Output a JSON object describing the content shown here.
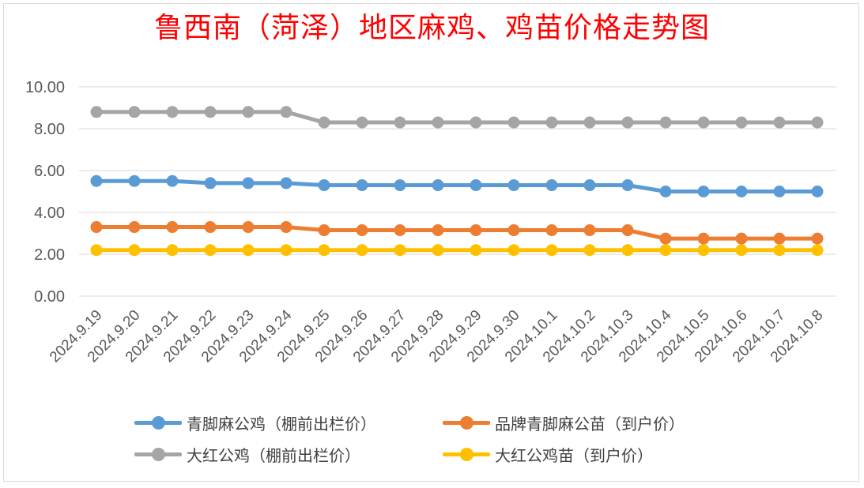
{
  "chart_data": {
    "type": "line",
    "title": "鲁西南（菏泽）地区麻鸡、鸡苗价格走势图",
    "xlabel": "",
    "ylabel": "",
    "ylim": [
      0,
      10
    ],
    "yticks": [
      "0.00",
      "2.00",
      "4.00",
      "6.00",
      "8.00",
      "10.00"
    ],
    "grid": true,
    "legend_position": "bottom",
    "categories": [
      "2024.9.19",
      "2024.9.20",
      "2024.9.21",
      "2024.9.22",
      "2024.9.23",
      "2024.9.24",
      "2024.9.25",
      "2024.9.26",
      "2024.9.27",
      "2024.9.28",
      "2024.9.29",
      "2024.9.30",
      "2024.10.1",
      "2024.10.2",
      "2024.10.3",
      "2024.10.4",
      "2024.10.5",
      "2024.10.6",
      "2024.10.7",
      "2024.10.8"
    ],
    "series": [
      {
        "name": "青脚麻公鸡（棚前出栏价）",
        "color": "#5b9bd5",
        "values": [
          5.5,
          5.5,
          5.5,
          5.4,
          5.4,
          5.4,
          5.3,
          5.3,
          5.3,
          5.3,
          5.3,
          5.3,
          5.3,
          5.3,
          5.3,
          5.0,
          5.0,
          5.0,
          5.0,
          5.0
        ]
      },
      {
        "name": "品牌青脚麻公苗（到户价）",
        "color": "#ed7d31",
        "values": [
          3.3,
          3.3,
          3.3,
          3.3,
          3.3,
          3.3,
          3.15,
          3.15,
          3.15,
          3.15,
          3.15,
          3.15,
          3.15,
          3.15,
          3.15,
          2.75,
          2.75,
          2.75,
          2.75,
          2.75
        ]
      },
      {
        "name": "大红公鸡（棚前出栏价）",
        "color": "#a5a5a5",
        "values": [
          8.8,
          8.8,
          8.8,
          8.8,
          8.8,
          8.8,
          8.3,
          8.3,
          8.3,
          8.3,
          8.3,
          8.3,
          8.3,
          8.3,
          8.3,
          8.3,
          8.3,
          8.3,
          8.3,
          8.3
        ]
      },
      {
        "name": "大红公鸡苗（到户价）",
        "color": "#ffc000",
        "values": [
          2.2,
          2.2,
          2.2,
          2.2,
          2.2,
          2.2,
          2.2,
          2.2,
          2.2,
          2.2,
          2.2,
          2.2,
          2.2,
          2.2,
          2.2,
          2.2,
          2.2,
          2.2,
          2.2,
          2.2
        ]
      }
    ],
    "gridline_color": "#d9d9d9",
    "title_color": "#ff0000"
  }
}
